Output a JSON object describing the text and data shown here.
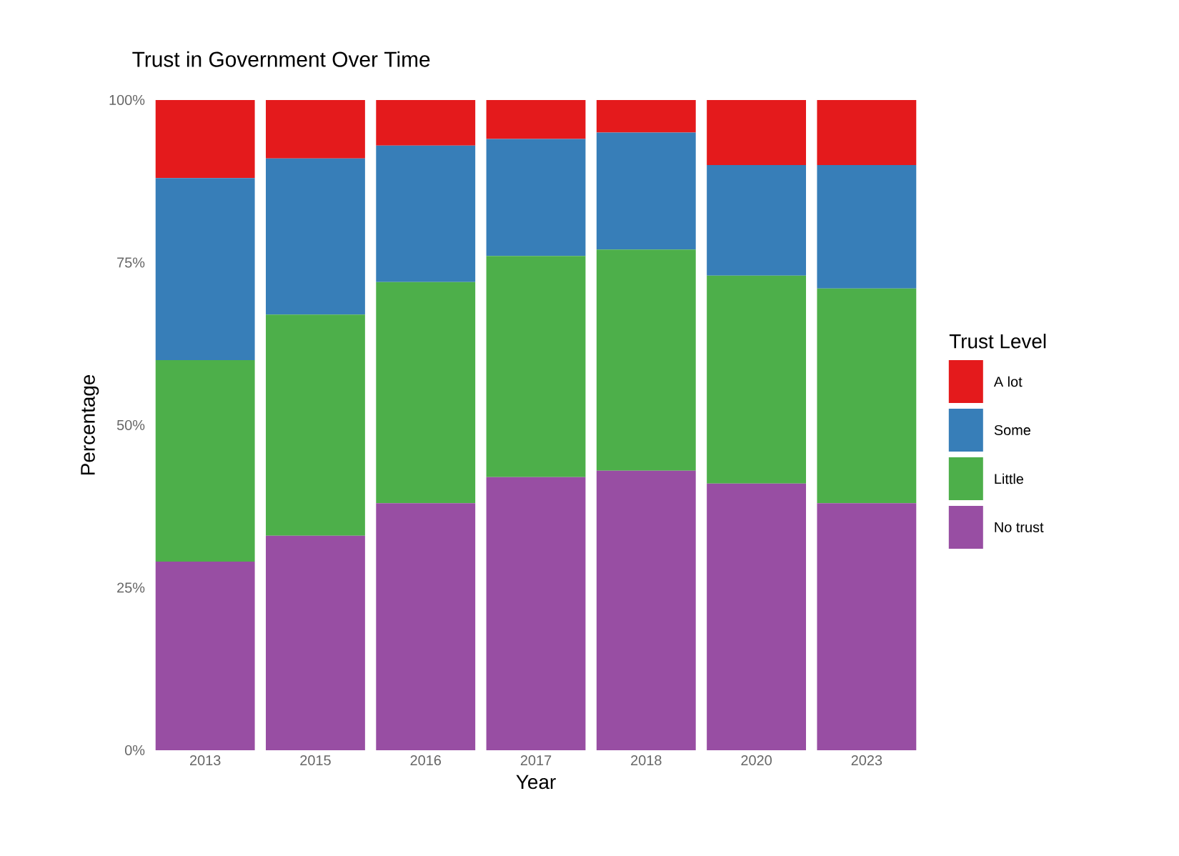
{
  "chart_data": {
    "type": "bar",
    "title": "Trust in Government Over Time",
    "xlabel": "Year",
    "ylabel": "Percentage",
    "legend_title": "Trust Level",
    "categories": [
      "2013",
      "2015",
      "2016",
      "2017",
      "2018",
      "2020",
      "2023"
    ],
    "stacked": true,
    "series": [
      {
        "name": "No trust",
        "color": "#984ea3",
        "values": [
          29,
          33,
          38,
          42,
          43,
          41,
          38
        ]
      },
      {
        "name": "Little",
        "color": "#4daf4a",
        "values": [
          31,
          34,
          34,
          34,
          34,
          32,
          33
        ]
      },
      {
        "name": "Some",
        "color": "#377eb8",
        "values": [
          28,
          24,
          21,
          18,
          18,
          17,
          19
        ]
      },
      {
        "name": "A lot",
        "color": "#e41a1c",
        "values": [
          12,
          9,
          7,
          6,
          5,
          10,
          10
        ]
      }
    ],
    "ylim": [
      0,
      100
    ],
    "yticks": [
      {
        "value": 0,
        "label": "0%"
      },
      {
        "value": 25,
        "label": "25%"
      },
      {
        "value": 50,
        "label": "50%"
      },
      {
        "value": 75,
        "label": "75%"
      },
      {
        "value": 100,
        "label": "100%"
      }
    ],
    "legend": "right"
  }
}
